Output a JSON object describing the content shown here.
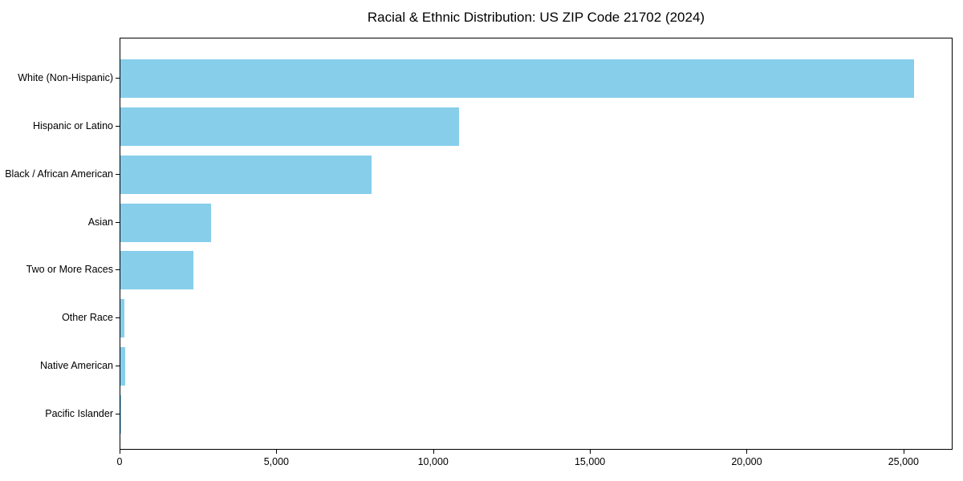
{
  "figure": {
    "background_color": "#ffffff",
    "spine_color": "#000000",
    "text_color": "#000000"
  },
  "chart_data": {
    "type": "bar",
    "orientation": "horizontal",
    "title": "Racial & Ethnic Distribution: US ZIP Code 21702 (2024)",
    "xlabel": "",
    "ylabel": "",
    "categories": [
      "White (Non-Hispanic)",
      "Hispanic or Latino",
      "Black / African American",
      "Asian",
      "Two or More Races",
      "Other Race",
      "Native American",
      "Pacific Islander"
    ],
    "values": [
      25300,
      10800,
      8000,
      2900,
      2330,
      120,
      150,
      20
    ],
    "xlim": [
      0,
      26565
    ],
    "xticks": [
      0,
      5000,
      10000,
      15000,
      20000,
      25000
    ],
    "xtick_labels": [
      "0",
      "5,000",
      "10,000",
      "15,000",
      "20,000",
      "25,000"
    ],
    "bar_color": "#87CEEB",
    "grid": false,
    "legend": null
  }
}
